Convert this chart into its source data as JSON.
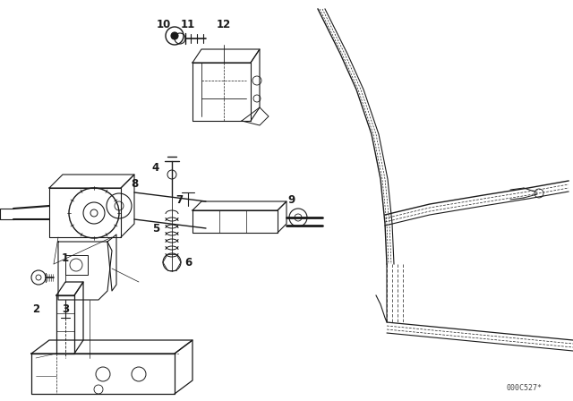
{
  "background_color": "#ffffff",
  "line_color": "#1a1a1a",
  "watermark": "000C527*",
  "fig_width": 6.4,
  "fig_height": 4.48,
  "dpi": 100
}
